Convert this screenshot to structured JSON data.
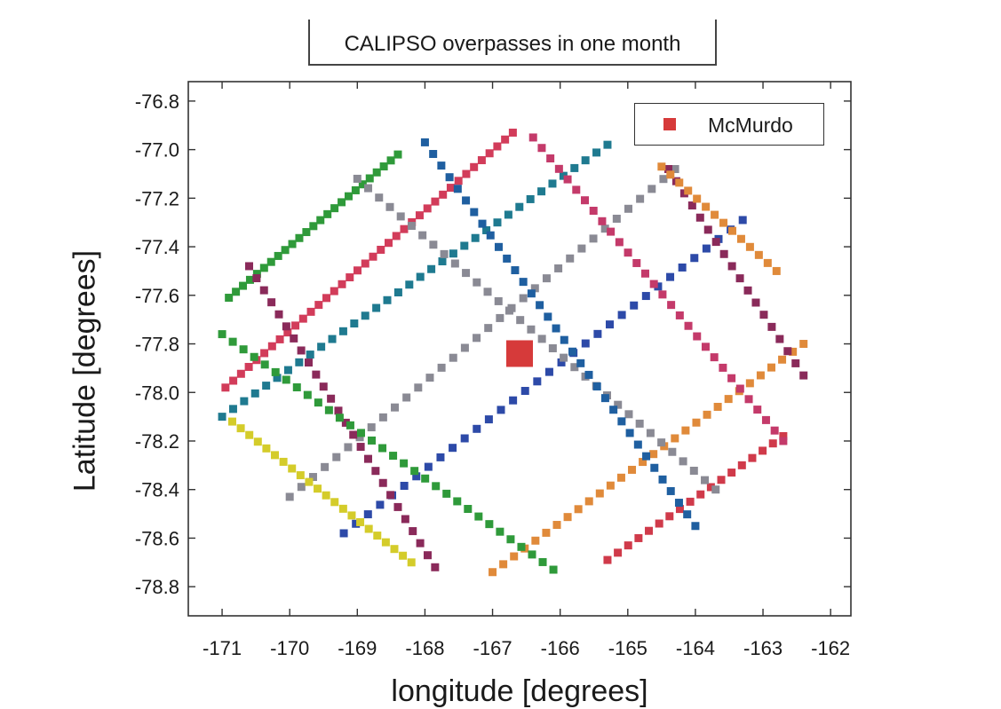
{
  "chart_data": {
    "type": "scatter",
    "title": "CALIPSO overpasses in one month",
    "xlabel": "longitude [degrees]",
    "ylabel": "Latitude [degrees]",
    "xlim": [
      -171.5,
      -161.7
    ],
    "ylim": [
      -78.92,
      -76.72
    ],
    "xticks": [
      -171,
      -170,
      -169,
      -168,
      -167,
      -166,
      -165,
      -164,
      -163,
      -162
    ],
    "yticks": [
      -76.8,
      -77.0,
      -77.2,
      -77.4,
      -77.6,
      -77.8,
      -78.0,
      -78.2,
      -78.4,
      -78.6,
      -78.8
    ],
    "xtick_labels": [
      "-171",
      "-170",
      "-169",
      "-168",
      "-167",
      "-166",
      "-165",
      "-164",
      "-163",
      "-162"
    ],
    "ytick_labels": [
      "-76.8",
      "-77.0",
      "-77.2",
      "-77.4",
      "-77.6",
      "-77.8",
      "-78.0",
      "-78.2",
      "-78.4",
      "-78.6",
      "-78.8"
    ],
    "grid": false,
    "legend": {
      "position": "top-right",
      "entries": [
        {
          "name": "McMurdo",
          "color": "#d63a3a"
        }
      ]
    },
    "highlight": {
      "name": "McMurdo",
      "x": -166.6,
      "y": -77.84,
      "color": "#d63a3a"
    },
    "tracks": [
      {
        "color": "#2f9a3a",
        "start": [
          -170.9,
          -77.61
        ],
        "end": [
          -168.4,
          -77.02
        ],
        "points": 25
      },
      {
        "color": "#d23c5a",
        "start": [
          -170.95,
          -77.98
        ],
        "end": [
          -166.7,
          -76.93
        ],
        "points": 38
      },
      {
        "color": "#1f7a90",
        "start": [
          -171.0,
          -78.1
        ],
        "end": [
          -165.3,
          -76.98
        ],
        "points": 36
      },
      {
        "color": "#8a8a94",
        "start": [
          -170.0,
          -78.43
        ],
        "end": [
          -164.3,
          -77.08
        ],
        "points": 34
      },
      {
        "color": "#2d4aa8",
        "start": [
          -169.2,
          -78.58
        ],
        "end": [
          -163.3,
          -77.29
        ],
        "points": 34
      },
      {
        "color": "#e08a3a",
        "start": [
          -167.0,
          -78.74
        ],
        "end": [
          -162.4,
          -77.8
        ],
        "points": 30
      },
      {
        "color": "#d03a4a",
        "start": [
          -165.3,
          -78.69
        ],
        "end": [
          -162.7,
          -78.18
        ],
        "points": 18
      },
      {
        "color": "#8a2a5a",
        "start": [
          -170.6,
          -77.48
        ],
        "end": [
          -167.85,
          -78.72
        ],
        "points": 26
      },
      {
        "color": "#8a8a94",
        "start": [
          -169.0,
          -77.12
        ],
        "end": [
          -163.7,
          -78.4
        ],
        "points": 34
      },
      {
        "color": "#1f5fa0",
        "start": [
          -168.0,
          -76.97
        ],
        "end": [
          -164.0,
          -78.55
        ],
        "points": 34
      },
      {
        "color": "#c43a6a",
        "start": [
          -166.4,
          -76.95
        ],
        "end": [
          -162.7,
          -78.2
        ],
        "points": 30
      },
      {
        "color": "#8a2a5a",
        "start": [
          -164.4,
          -77.08
        ],
        "end": [
          -162.4,
          -77.93
        ],
        "points": 18
      },
      {
        "color": "#2f9a3a",
        "start": [
          -171.0,
          -77.76
        ],
        "end": [
          -166.1,
          -78.73
        ],
        "points": 32
      },
      {
        "color": "#d4cc2a",
        "start": [
          -170.85,
          -78.12
        ],
        "end": [
          -168.2,
          -78.7
        ],
        "points": 22
      },
      {
        "color": "#e08a3a",
        "start": [
          -164.5,
          -77.07
        ],
        "end": [
          -162.8,
          -77.5
        ],
        "points": 14
      }
    ]
  }
}
